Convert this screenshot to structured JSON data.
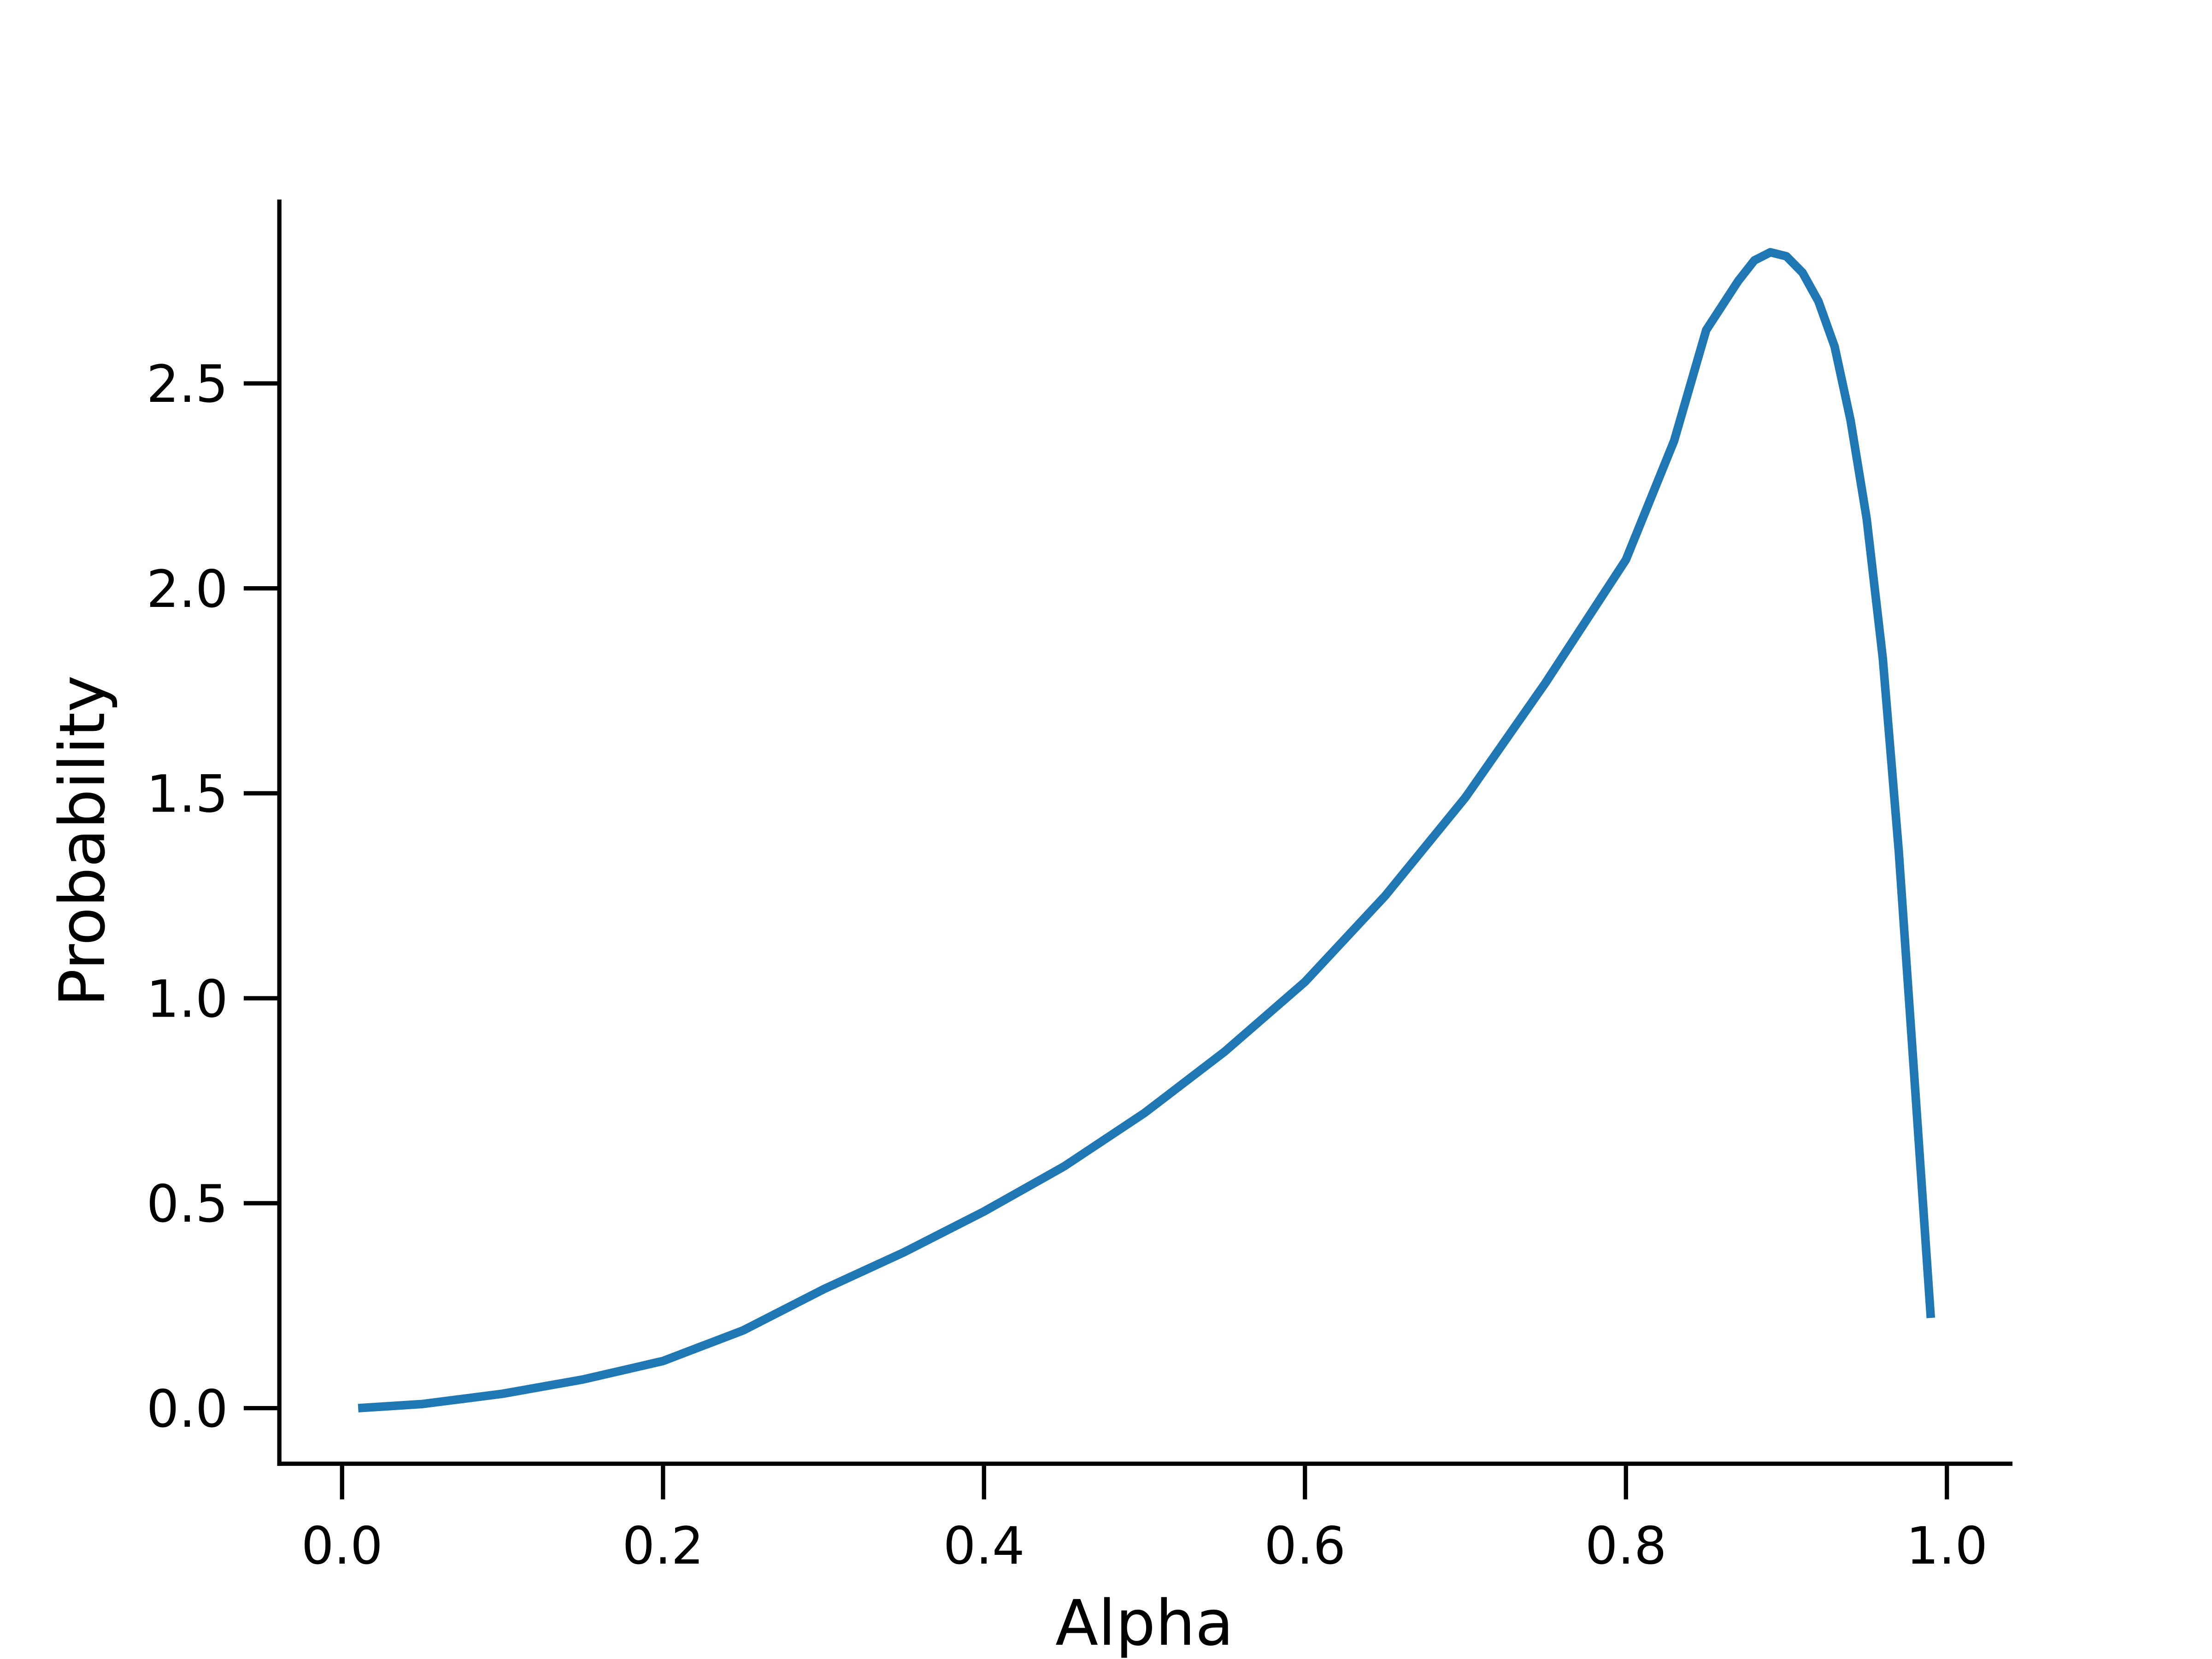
{
  "chart_data": {
    "type": "line",
    "title": "",
    "xlabel": "Alpha",
    "ylabel": "Probability",
    "xlim": [
      -0.04,
      1.04
    ],
    "ylim": [
      -0.14,
      2.95
    ],
    "xticks": [
      0.0,
      0.2,
      0.4,
      0.6,
      0.8,
      1.0
    ],
    "xtick_labels": [
      "0.0",
      "0.2",
      "0.4",
      "0.6",
      "0.8",
      "1.0"
    ],
    "yticks": [
      0.0,
      0.5,
      1.0,
      1.5,
      2.0,
      2.5
    ],
    "ytick_labels": [
      "0.0",
      "0.5",
      "1.0",
      "1.5",
      "2.0",
      "2.5"
    ],
    "grid": false,
    "color": "#1f77b4",
    "series": [
      {
        "x": [
          0.01,
          0.05,
          0.1,
          0.15,
          0.2,
          0.25,
          0.3,
          0.35,
          0.4,
          0.45,
          0.5,
          0.55,
          0.6,
          0.65,
          0.7,
          0.75,
          0.8,
          0.83,
          0.85,
          0.87,
          0.88,
          0.89,
          0.9,
          0.91,
          0.92,
          0.93,
          0.94,
          0.95,
          0.96,
          0.97,
          0.98,
          0.99
        ],
        "y": [
          0.0,
          0.01,
          0.035,
          0.07,
          0.115,
          0.19,
          0.29,
          0.38,
          0.48,
          0.59,
          0.72,
          0.87,
          1.04,
          1.25,
          1.49,
          1.77,
          2.07,
          2.36,
          2.63,
          2.75,
          2.8,
          2.82,
          2.81,
          2.77,
          2.7,
          2.59,
          2.41,
          2.17,
          1.83,
          1.36,
          0.79,
          0.22
        ]
      }
    ]
  }
}
